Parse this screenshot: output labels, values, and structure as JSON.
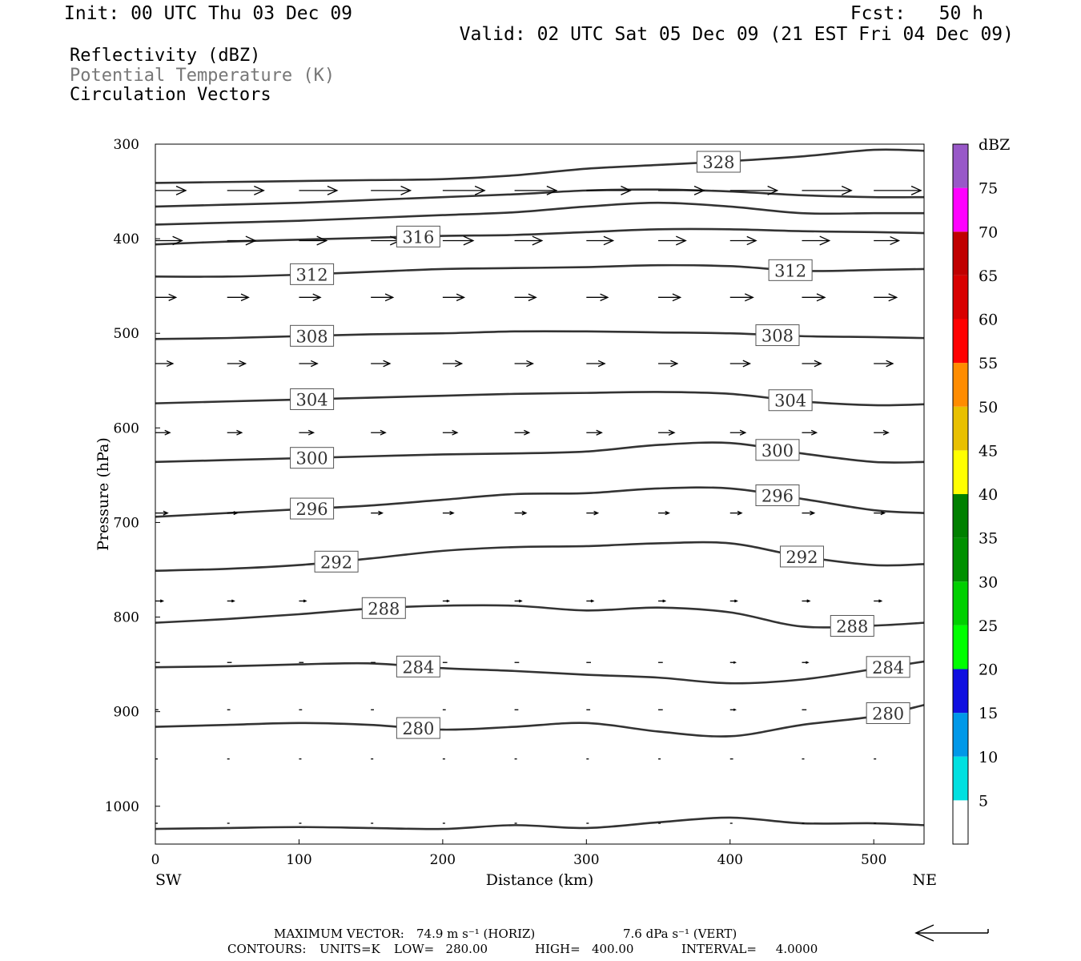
{
  "header": {
    "init": "Init: 00 UTC Thu 03 Dec 09",
    "fcst": "Fcst:   50 h",
    "valid": "Valid: 02 UTC Sat 05 Dec 09 (21 EST Fri 04 Dec 09)"
  },
  "legend_lines": [
    "Reflectivity (dBZ)",
    "Potential Temperature (K)",
    "Circulation Vectors"
  ],
  "colors": {
    "contour": "#333333",
    "vector": "#000000",
    "frame": "#000000",
    "legend_gray": "#777777"
  },
  "chart_data": {
    "type": "cross-section",
    "xlabel": "Distance (km)",
    "ylabel": "Pressure (hPa)",
    "x_ticks": [
      0,
      100,
      200,
      300,
      400,
      500
    ],
    "y_ticks": [
      300,
      400,
      500,
      600,
      700,
      800,
      900,
      1000
    ],
    "xlim": [
      0,
      535
    ],
    "ylim": [
      300,
      1040
    ],
    "y_inverted": true,
    "left_end_label": "SW",
    "right_end_label": "NE",
    "contour_x": [
      0,
      50,
      100,
      150,
      200,
      250,
      300,
      350,
      400,
      450,
      500,
      535
    ],
    "contours": [
      {
        "label": "328",
        "p": [
          341,
          340,
          339,
          338,
          337,
          333,
          326,
          322,
          318,
          313,
          306,
          307
        ]
      },
      {
        "label": "",
        "p": [
          366,
          364,
          362,
          359,
          356,
          353,
          349,
          348,
          350,
          354,
          356,
          356
        ]
      },
      {
        "label": "",
        "p": [
          385,
          383,
          381,
          378,
          375,
          372,
          366,
          362,
          366,
          373,
          373,
          373
        ]
      },
      {
        "label": "316",
        "p": [
          406,
          403,
          401,
          399,
          397,
          396,
          393,
          390,
          390,
          392,
          393,
          394
        ]
      },
      {
        "label": "312",
        "p": [
          440,
          440,
          438,
          435,
          432,
          431,
          430,
          428,
          429,
          434,
          433,
          432
        ]
      },
      {
        "label": "308",
        "p": [
          506,
          505,
          503,
          501,
          500,
          498,
          498,
          499,
          500,
          503,
          504,
          505
        ]
      },
      {
        "label": "304",
        "p": [
          574,
          572,
          570,
          568,
          566,
          564,
          563,
          562,
          564,
          572,
          576,
          575
        ]
      },
      {
        "label": "300",
        "p": [
          636,
          634,
          632,
          630,
          628,
          627,
          625,
          618,
          616,
          627,
          636,
          636
        ]
      },
      {
        "label": "296",
        "p": [
          694,
          690,
          686,
          682,
          676,
          670,
          669,
          664,
          664,
          675,
          687,
          690
        ]
      },
      {
        "label": "292",
        "p": [
          751,
          749,
          745,
          738,
          730,
          726,
          725,
          722,
          722,
          736,
          745,
          744
        ]
      },
      {
        "label": "288",
        "p": [
          806,
          802,
          797,
          791,
          788,
          788,
          793,
          790,
          795,
          810,
          809,
          806
        ]
      },
      {
        "label": "284",
        "p": [
          853,
          852,
          850,
          849,
          854,
          857,
          861,
          864,
          870,
          866,
          855,
          847
        ]
      },
      {
        "label": "280",
        "p": [
          916,
          914,
          912,
          914,
          919,
          916,
          912,
          921,
          926,
          914,
          905,
          893
        ]
      },
      {
        "label": "",
        "p": [
          1024,
          1023,
          1022,
          1023,
          1024,
          1020,
          1023,
          1017,
          1012,
          1018,
          1018,
          1020
        ]
      }
    ],
    "vector_x": [
      0,
      50,
      100,
      150,
      200,
      250,
      300,
      350,
      400,
      450,
      500
    ],
    "vector_rows": [
      {
        "p": 349,
        "u": [
          40,
          48,
          50,
          52,
          55,
          55,
          58,
          60,
          62,
          65,
          62
        ]
      },
      {
        "p": 402,
        "u": [
          35,
          37,
          36,
          38,
          40,
          36,
          35,
          36,
          34,
          36,
          33
        ]
      },
      {
        "p": 462,
        "u": [
          27,
          28,
          28,
          29,
          28,
          28,
          28,
          29,
          30,
          30,
          30
        ]
      },
      {
        "p": 532,
        "u": [
          23,
          24,
          24,
          25,
          25,
          24,
          24,
          25,
          26,
          25,
          25
        ]
      },
      {
        "p": 605,
        "u": [
          19,
          19,
          19,
          19,
          19,
          19,
          20,
          21,
          20,
          19,
          19
        ]
      },
      {
        "p": 690,
        "u": [
          16,
          13,
          15,
          15,
          14,
          15,
          15,
          14,
          15,
          16,
          14
        ]
      },
      {
        "p": 783,
        "u": [
          10,
          9,
          9,
          9,
          8,
          9,
          9,
          9,
          9,
          10,
          10
        ]
      },
      {
        "p": 848,
        "u": [
          6,
          6,
          6,
          6,
          6,
          6,
          6,
          6,
          7,
          8,
          8
        ]
      },
      {
        "p": 898,
        "u": [
          4,
          4,
          4,
          4,
          4,
          5,
          5,
          6,
          7,
          6,
          6
        ]
      },
      {
        "p": 950,
        "u": [
          2,
          1,
          2,
          2,
          3,
          3,
          3,
          3,
          4,
          3,
          3
        ]
      },
      {
        "p": 1018,
        "u": [
          1,
          1,
          1,
          1,
          1,
          1,
          1,
          1,
          1,
          1,
          1
        ]
      }
    ],
    "colorbar": {
      "units": "dBZ",
      "tick_labels": [
        "5",
        "10",
        "15",
        "20",
        "25",
        "30",
        "35",
        "40",
        "45",
        "50",
        "55",
        "60",
        "65",
        "70",
        "75"
      ],
      "colors": [
        "#00e0e0",
        "#0098e8",
        "#1010e0",
        "#00ff00",
        "#00d000",
        "#009000",
        "#008000",
        "#ffff00",
        "#e8c000",
        "#ff8c00",
        "#ff0000",
        "#d80000",
        "#c00000",
        "#ff00ff",
        "#9858c8"
      ]
    }
  },
  "footer": {
    "max_vector_label": "MAXIMUM VECTOR:",
    "max_vector_horiz": "74.9 m s⁻¹ (HORIZ)",
    "max_vector_vert": "7.6 dPa s⁻¹ (VERT)",
    "contours_label": "CONTOURS:",
    "units": "UNITS=K",
    "low": "LOW=   280.00",
    "high": "HIGH=   400.00",
    "interval": "INTERVAL=     4.0000"
  }
}
